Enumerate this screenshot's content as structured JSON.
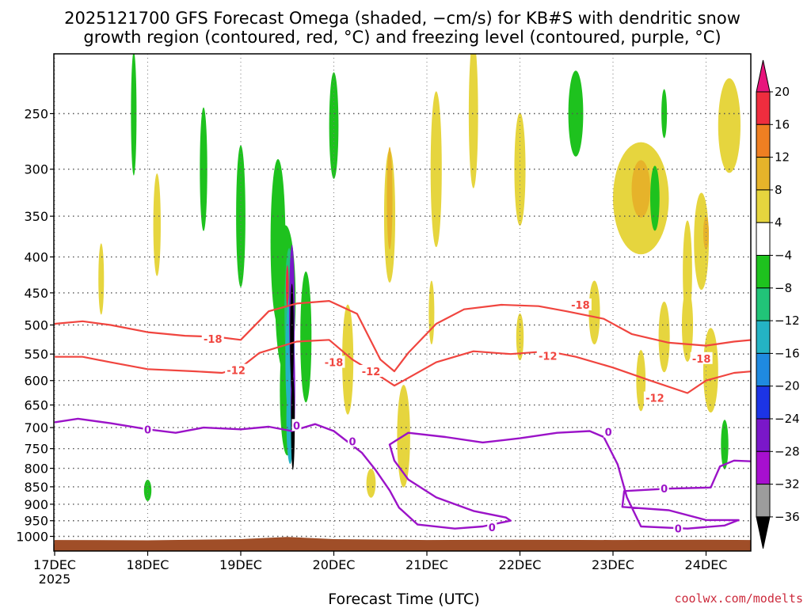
{
  "chart_data": {
    "type": "heatmap",
    "title_line1": "2025121700 GFS Forecast Omega (shaded, −cm/s) for KB#S with dendritic snow",
    "title_line2": "growth region (contoured, red, °C) and freezing level (contoured, purple, °C)",
    "xlabel": "Forecast Time (UTC)",
    "ylabel": "",
    "credit": "coolwx.com/modelts",
    "x_ticks": [
      "17DEC",
      "18DEC",
      "19DEC",
      "20DEC",
      "21DEC",
      "22DEC",
      "23DEC",
      "24DEC"
    ],
    "x_start_label": "2025",
    "x_range_days": [
      0,
      7.5
    ],
    "y_ticks": [
      250,
      300,
      350,
      400,
      450,
      500,
      550,
      600,
      650,
      700,
      750,
      800,
      850,
      900,
      950,
      1000
    ],
    "y_range_hpa": [
      200,
      1020
    ],
    "colorbar": {
      "labels": [
        "20",
        "16",
        "12",
        "8",
        "4",
        "−4",
        "−8",
        "−12",
        "−16",
        "−20",
        "−24",
        "−28",
        "−32",
        "−36"
      ],
      "levels": [
        20,
        16,
        12,
        8,
        4,
        -4,
        -8,
        -12,
        -16,
        -20,
        -24,
        -28,
        -32,
        -36
      ],
      "colors": {
        "above20": "#e8157c",
        "16_20": "#ef2d3e",
        "12_16": "#ef7f22",
        "8_12": "#e6b32a",
        "4_8": "#e6d53e",
        "m4_4": "#ffffff",
        "m8_m4": "#1ec21e",
        "m12_m8": "#21c478",
        "m16_m12": "#24b3c4",
        "m20_m16": "#1f8ae0",
        "m24_m20": "#1c34e6",
        "m28_m24": "#7a17c9",
        "m32_m28": "#a70fcf",
        "m36_m32": "#9c9c9c",
        "below36": "#000000"
      }
    },
    "contour_colors": {
      "dgz": "#f0453f",
      "freezing": "#9b13c8",
      "terrain": "#a04e28"
    },
    "dgz_m18": [
      [
        0.0,
        498
      ],
      [
        0.3,
        494
      ],
      [
        0.6,
        500
      ],
      [
        1.0,
        512
      ],
      [
        1.4,
        518
      ],
      [
        1.75,
        520
      ],
      [
        2.0,
        525
      ],
      [
        2.3,
        478
      ],
      [
        2.6,
        466
      ],
      [
        2.95,
        462
      ],
      [
        3.25,
        482
      ],
      [
        3.5,
        560
      ],
      [
        3.65,
        582
      ],
      [
        3.8,
        548
      ],
      [
        4.1,
        498
      ],
      [
        4.4,
        475
      ],
      [
        4.8,
        468
      ],
      [
        5.2,
        470
      ],
      [
        5.5,
        478
      ],
      [
        5.9,
        490
      ],
      [
        6.2,
        515
      ],
      [
        6.6,
        530
      ],
      [
        7.0,
        535
      ],
      [
        7.3,
        528
      ],
      [
        7.5,
        525
      ]
    ],
    "dgz_m18_labels": [
      [
        1.7,
        523,
        "-18"
      ],
      [
        3.0,
        565,
        "-18"
      ],
      [
        5.65,
        468,
        "-18"
      ],
      [
        6.95,
        558,
        "-18"
      ]
    ],
    "dgz_m12": [
      [
        0.0,
        555
      ],
      [
        0.3,
        555
      ],
      [
        0.6,
        565
      ],
      [
        1.0,
        578
      ],
      [
        1.5,
        582
      ],
      [
        1.8,
        585
      ],
      [
        2.0,
        575
      ],
      [
        2.2,
        548
      ],
      [
        2.6,
        528
      ],
      [
        2.95,
        525
      ],
      [
        3.2,
        560
      ],
      [
        3.5,
        592
      ],
      [
        3.65,
        610
      ],
      [
        3.75,
        600
      ],
      [
        4.1,
        565
      ],
      [
        4.5,
        545
      ],
      [
        4.9,
        550
      ],
      [
        5.3,
        545
      ],
      [
        5.6,
        555
      ],
      [
        6.0,
        575
      ],
      [
        6.4,
        600
      ],
      [
        6.8,
        625
      ],
      [
        7.0,
        600
      ],
      [
        7.3,
        585
      ],
      [
        7.5,
        582
      ]
    ],
    "dgz_m12_labels": [
      [
        1.95,
        580,
        "-12"
      ],
      [
        3.4,
        582,
        "-12"
      ],
      [
        5.3,
        553,
        "-12"
      ],
      [
        6.45,
        635,
        "-12"
      ]
    ],
    "fz_0": [
      [
        0.0,
        688
      ],
      [
        0.25,
        680
      ],
      [
        0.6,
        690
      ],
      [
        1.0,
        704
      ],
      [
        1.3,
        712
      ],
      [
        1.6,
        700
      ],
      [
        2.0,
        704
      ],
      [
        2.3,
        698
      ],
      [
        2.55,
        708
      ],
      [
        2.8,
        692
      ],
      [
        3.0,
        708
      ],
      [
        3.3,
        760
      ],
      [
        3.45,
        805
      ],
      [
        3.6,
        860
      ],
      [
        3.7,
        910
      ],
      [
        3.9,
        962
      ],
      [
        4.3,
        975
      ],
      [
        4.6,
        968
      ],
      [
        4.9,
        950
      ],
      [
        4.85,
        940
      ],
      [
        4.5,
        920
      ],
      [
        4.1,
        880
      ],
      [
        3.8,
        830
      ],
      [
        3.65,
        780
      ],
      [
        3.6,
        740
      ],
      [
        3.8,
        712
      ],
      [
        4.2,
        722
      ],
      [
        4.6,
        735
      ],
      [
        5.0,
        725
      ],
      [
        5.4,
        712
      ],
      [
        5.75,
        708
      ],
      [
        5.9,
        722
      ],
      [
        6.05,
        790
      ],
      [
        6.15,
        880
      ],
      [
        6.3,
        968
      ],
      [
        6.8,
        975
      ],
      [
        7.2,
        965
      ],
      [
        7.35,
        948
      ],
      [
        7.0,
        948
      ],
      [
        6.6,
        918
      ],
      [
        6.1,
        908
      ],
      [
        6.12,
        862
      ],
      [
        6.6,
        855
      ],
      [
        7.05,
        852
      ],
      [
        7.15,
        795
      ],
      [
        7.3,
        780
      ],
      [
        7.5,
        782
      ]
    ],
    "fz_0_labels": [
      [
        1.0,
        704,
        "0"
      ],
      [
        2.6,
        695,
        "0"
      ],
      [
        3.2,
        732,
        "0"
      ],
      [
        4.7,
        970,
        "0"
      ],
      [
        5.95,
        710,
        "0"
      ],
      [
        6.7,
        975,
        "0"
      ],
      [
        6.55,
        855,
        "0"
      ]
    ],
    "terrain": [
      [
        0.0,
        1012
      ],
      [
        1.0,
        1013
      ],
      [
        2.0,
        1009
      ],
      [
        2.5,
        1002
      ],
      [
        3.0,
        1009
      ],
      [
        4.0,
        1012
      ],
      [
        5.0,
        1011
      ],
      [
        6.0,
        1012
      ],
      [
        7.0,
        1011
      ],
      [
        7.5,
        1012
      ]
    ],
    "omega_blobs": [
      [
        2.48,
        460,
        0.11,
        220,
        "m8_m4"
      ],
      [
        2.5,
        620,
        0.08,
        260,
        "m8_m4"
      ],
      [
        2.52,
        480,
        0.05,
        200,
        "m12_m8"
      ],
      [
        2.53,
        560,
        0.05,
        230,
        "m16_m12"
      ],
      [
        2.53,
        680,
        0.04,
        200,
        "m16_m12"
      ],
      [
        2.55,
        480,
        0.03,
        210,
        "m28_m24"
      ],
      [
        2.56,
        620,
        0.025,
        210,
        "m28_m24"
      ],
      [
        2.55,
        520,
        0.02,
        180,
        "below36"
      ],
      [
        2.56,
        690,
        0.02,
        210,
        "below36"
      ],
      [
        2.5,
        440,
        0.015,
        60,
        "16_20"
      ],
      [
        2.4,
        380,
        0.08,
        200,
        "m8_m4"
      ],
      [
        2.7,
        520,
        0.06,
        220,
        "m8_m4"
      ],
      [
        2.0,
        350,
        0.05,
        160,
        "m8_m4"
      ],
      [
        1.6,
        300,
        0.04,
        120,
        "m8_m4"
      ],
      [
        0.85,
        250,
        0.03,
        100,
        "m8_m4"
      ],
      [
        1.0,
        860,
        0.04,
        60,
        "m8_m4"
      ],
      [
        3.0,
        260,
        0.05,
        90,
        "m8_m4"
      ],
      [
        3.6,
        350,
        0.06,
        150,
        "4_8"
      ],
      [
        3.6,
        330,
        0.03,
        110,
        "8_12"
      ],
      [
        3.75,
        720,
        0.07,
        240,
        "4_8"
      ],
      [
        3.15,
        560,
        0.06,
        200,
        "4_8"
      ],
      [
        4.1,
        300,
        0.06,
        150,
        "4_8"
      ],
      [
        4.5,
        250,
        0.05,
        120,
        "4_8"
      ],
      [
        5.0,
        300,
        0.06,
        110,
        "4_8"
      ],
      [
        5.6,
        250,
        0.08,
        70,
        "m8_m4"
      ],
      [
        6.3,
        330,
        0.3,
        120,
        "4_8"
      ],
      [
        6.3,
        320,
        0.1,
        60,
        "8_12"
      ],
      [
        6.55,
        250,
        0.03,
        40,
        "m8_m4"
      ],
      [
        6.45,
        330,
        0.05,
        70,
        "m8_m4"
      ],
      [
        6.8,
        420,
        0.05,
        140,
        "4_8"
      ],
      [
        6.95,
        380,
        0.08,
        120,
        "4_8"
      ],
      [
        7.0,
        370,
        0.03,
        40,
        "8_12"
      ],
      [
        7.25,
        260,
        0.12,
        80,
        "4_8"
      ],
      [
        7.2,
        740,
        0.04,
        120,
        "m8_m4"
      ],
      [
        5.0,
        520,
        0.04,
        80,
        "4_8"
      ],
      [
        5.8,
        480,
        0.06,
        100,
        "4_8"
      ],
      [
        6.55,
        520,
        0.06,
        120,
        "4_8"
      ],
      [
        6.8,
        500,
        0.06,
        120,
        "4_8"
      ],
      [
        7.05,
        580,
        0.08,
        160,
        "4_8"
      ],
      [
        6.3,
        600,
        0.05,
        120,
        "4_8"
      ],
      [
        0.5,
        430,
        0.03,
        100,
        "4_8"
      ],
      [
        1.1,
        360,
        0.04,
        120,
        "4_8"
      ],
      [
        3.4,
        840,
        0.05,
        80,
        "4_8"
      ],
      [
        4.05,
        480,
        0.03,
        100,
        "4_8"
      ]
    ]
  }
}
